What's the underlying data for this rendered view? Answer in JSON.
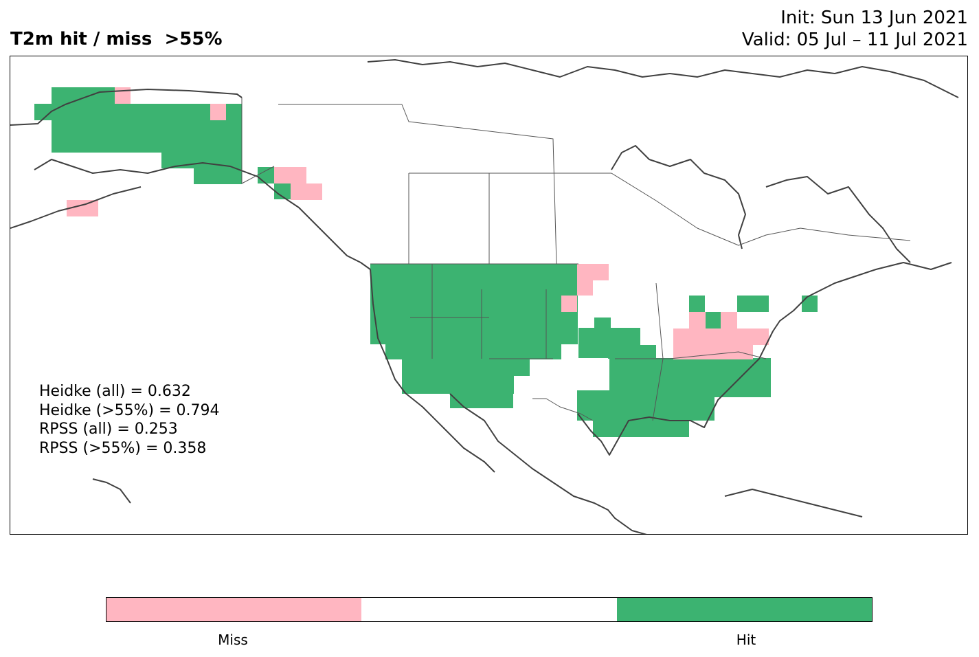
{
  "title": "T2m hit / miss  >55%",
  "init_text": "Init: Sun 13 Jun 2021",
  "valid_text": "Valid: 05 Jul – 11 Jul 2021",
  "colors": {
    "miss": "#FFB6C1",
    "neutral": "#FFFFFF",
    "hit": "#3CB371",
    "coast": "#404040",
    "border": "#555555"
  },
  "stats": [
    "Heidke (all) = 0.632",
    "Heidke (>55%) = 0.794",
    "RPSS (all) = 0.253",
    "RPSS (>55%) = 0.358"
  ],
  "colorbar": {
    "labels": [
      "Miss",
      "Hit"
    ]
  }
}
